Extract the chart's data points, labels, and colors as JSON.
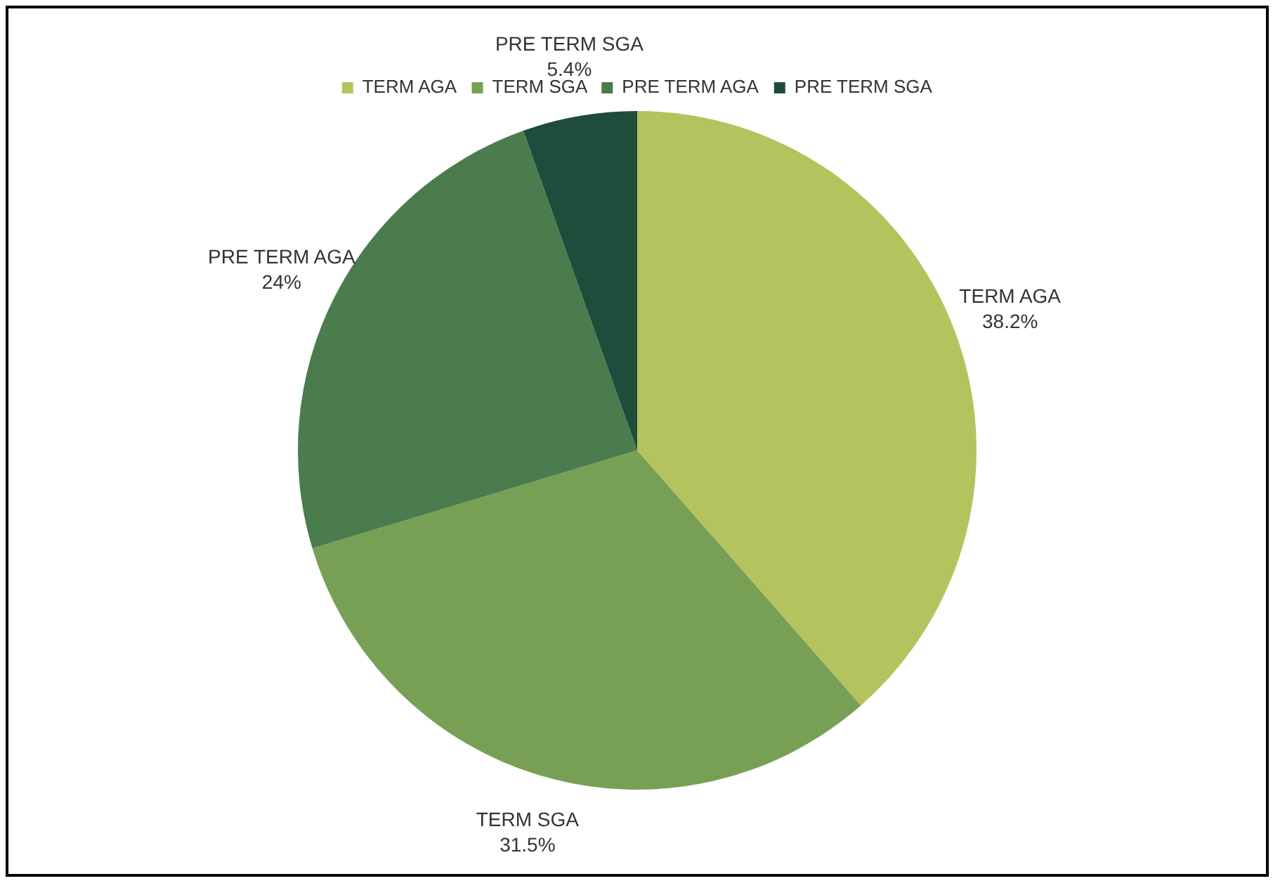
{
  "chart_data": {
    "type": "pie",
    "categories": [
      "TERM AGA",
      "TERM SGA",
      "PRE TERM AGA",
      "PRE TERM SGA"
    ],
    "values": [
      38.2,
      31.5,
      24,
      5.4
    ],
    "value_labels": [
      "38.2%",
      "31.5%",
      "24%",
      "5.4%"
    ],
    "colors": [
      "#b5c35f",
      "#78a055",
      "#4a7c4e",
      "#1e4d3b"
    ],
    "legend": "top"
  }
}
